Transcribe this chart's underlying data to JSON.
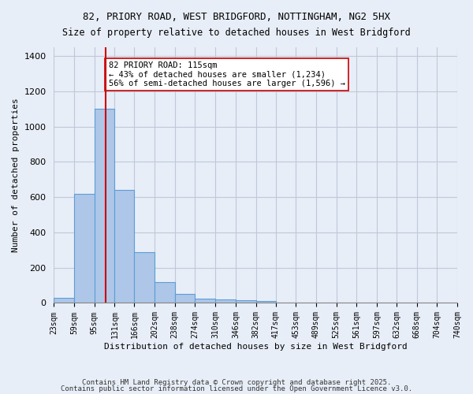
{
  "title1": "82, PRIORY ROAD, WEST BRIDGFORD, NOTTINGHAM, NG2 5HX",
  "title2": "Size of property relative to detached houses in West Bridgford",
  "xlabel": "Distribution of detached houses by size in West Bridgford",
  "ylabel": "Number of detached properties",
  "bins": [
    23,
    59,
    95,
    131,
    166,
    202,
    238,
    274,
    310,
    346,
    382,
    417,
    453,
    489,
    525,
    561,
    597,
    632,
    668,
    704,
    740
  ],
  "counts": [
    30,
    620,
    1100,
    640,
    290,
    120,
    50,
    25,
    20,
    15,
    10,
    0,
    0,
    0,
    0,
    0,
    0,
    0,
    0,
    0
  ],
  "bar_color": "#aec6e8",
  "bar_edge_color": "#5a9fd4",
  "bg_color": "#e8eef8",
  "grid_color": "#c0c8d8",
  "vline_x": 115,
  "vline_color": "#cc0000",
  "annotation_text": "82 PRIORY ROAD: 115sqm\n← 43% of detached houses are smaller (1,234)\n56% of semi-detached houses are larger (1,596) →",
  "annotation_box_color": "white",
  "annotation_box_edge": "#cc0000",
  "footer1": "Contains HM Land Registry data © Crown copyright and database right 2025.",
  "footer2": "Contains public sector information licensed under the Open Government Licence v3.0.",
  "ylim": [
    0,
    1450
  ],
  "yticks": [
    0,
    200,
    400,
    600,
    800,
    1000,
    1200,
    1400
  ]
}
